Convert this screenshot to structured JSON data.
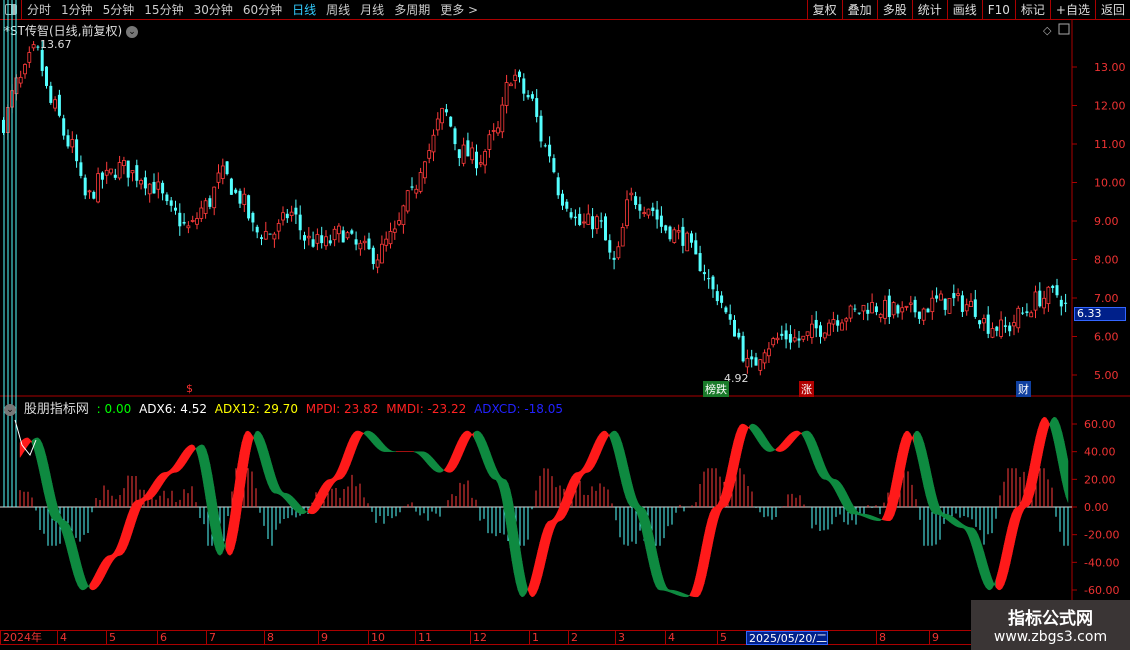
{
  "toolbar": {
    "periods": [
      "分时",
      "1分钟",
      "5分钟",
      "15分钟",
      "30分钟",
      "60分钟",
      "日线",
      "周线",
      "月线",
      "多周期",
      "更多 >"
    ],
    "active": "日线",
    "right_buttons": [
      "复权",
      "叠加",
      "多股",
      "统计",
      "画线",
      "F10",
      "标记",
      "+自选",
      "返回"
    ]
  },
  "stock_title": "*ST传智(日线,前复权)",
  "price_axis": {
    "ticks": [
      "13.00",
      "12.00",
      "11.00",
      "10.00",
      "9.00",
      "8.00",
      "7.00",
      "6.00",
      "5.00"
    ],
    "high_label": "13.67",
    "low_label": "4.92",
    "last_price": "6.33"
  },
  "markers": [
    {
      "text": "$",
      "color": "#ff3030"
    },
    {
      "text": "榜跌",
      "color": "#ffffff",
      "bg": "#1a7a2a"
    },
    {
      "text": "涨",
      "color": "#ffffff",
      "bg": "#b00000"
    },
    {
      "text": "财",
      "color": "#ffffff",
      "bg": "#1040a0"
    }
  ],
  "indicator": {
    "name": "股朋指标网",
    "value0": ": 0.00",
    "adx6": "ADX6: 4.52",
    "adx12": "ADX12: 29.70",
    "mpdi": "MPDI: 23.82",
    "mmdi": "MMDI: -23.22",
    "adxcd": "ADXCD: -18.05",
    "ticks": [
      "60.00",
      "40.00",
      "20.00",
      "0.00",
      "-20.00",
      "-40.00",
      "-60.00"
    ]
  },
  "x_axis": {
    "labels": [
      "2024年",
      "4",
      "5",
      "6",
      "7",
      "8",
      "9",
      "10",
      "11",
      "12",
      "1",
      "2",
      "3",
      "4",
      "5",
      "2025/05/20/二",
      "8",
      "9"
    ]
  },
  "watermark": {
    "line1": "指标公式网",
    "line2": "www.zbgs3.com"
  },
  "chart_data": {
    "type": "candlestick",
    "price_path": [
      11.5,
      12.6,
      13.4,
      12.0,
      11.0,
      9.6,
      10.1,
      10.4,
      10.2,
      9.9,
      9.2,
      8.8,
      9.4,
      10.2,
      9.6,
      8.7,
      8.7,
      9.2,
      8.5,
      8.4,
      8.7,
      8.3,
      8.1,
      8.6,
      9.6,
      10.8,
      11.8,
      10.8,
      10.6,
      11.2,
      12.8,
      12.2,
      10.9,
      9.6,
      8.9,
      9.0,
      7.9,
      9.6,
      9.4,
      8.8,
      8.6,
      7.9,
      7.1,
      6.2,
      5.2,
      5.8,
      6.0,
      5.9,
      6.2,
      6.5,
      6.6,
      6.8,
      6.7,
      6.6,
      6.7,
      6.9,
      6.9,
      6.8,
      6.3,
      6.2,
      6.6,
      7.0,
      7.1,
      6.5
    ],
    "osc_path": [
      30,
      50,
      -10,
      -60,
      -35,
      5,
      25,
      45,
      -35,
      55,
      10,
      -5,
      20,
      55,
      40,
      40,
      25,
      55,
      20,
      -65,
      -10,
      25,
      55,
      0,
      -60,
      -65,
      0,
      60,
      40,
      55,
      20,
      -5,
      -10,
      55,
      -5,
      -15,
      -60,
      0,
      65,
      0
    ],
    "y_range_price": [
      4.6,
      13.9
    ],
    "y_range_indicator": [
      -70,
      70
    ]
  }
}
